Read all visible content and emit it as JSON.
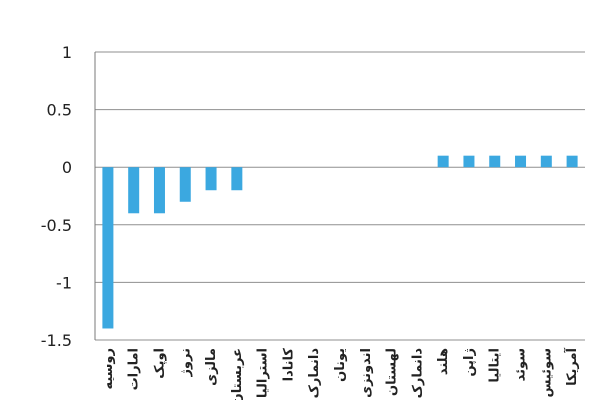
{
  "chart_data": {
    "type": "bar",
    "categories": [
      "روسیه",
      "امارات",
      "اوپک",
      "نروژ",
      "مالزی",
      "عربستان",
      "استرالیا",
      "کانادا",
      "دانمارک",
      "یونان",
      "اندونزی",
      "لهستان",
      "دانمارک",
      "هلند",
      "ژاپن",
      "ایتالیا",
      "سوئد",
      "سوئیس",
      "آمریکا"
    ],
    "values": [
      -1.4,
      -0.4,
      -0.4,
      -0.3,
      -0.2,
      -0.2,
      0,
      0,
      0,
      0,
      0,
      0,
      0,
      0.1,
      0.1,
      0.1,
      0.1,
      0.1,
      0.1
    ],
    "ylim": [
      -1.5,
      1
    ],
    "yticks": [
      1,
      0.5,
      0,
      -0.5,
      -1,
      -1.5
    ],
    "ytick_labels": [
      "1",
      "0.5",
      "0",
      "-0.5",
      "-1",
      "-1.5"
    ],
    "grid": true,
    "colors": {
      "bar": "#3ba8e0",
      "grid": "#8f8f8f"
    }
  }
}
